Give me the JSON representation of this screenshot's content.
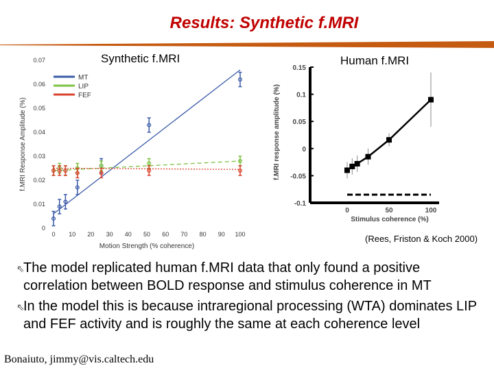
{
  "slide": {
    "title": "Results: Synthetic f.MRI",
    "citation": "(Rees, Friston & Koch 2000)",
    "footer": "Bonaiuto, jimmy@vis.caltech.edu",
    "bullets": [
      "The model replicated human f.MRI data that only found a positive correlation between BOLD response and stimulus coherence in MT",
      " In the model this is because intraregional processing (WTA) dominates LIP and FEF activity and is roughly the same at each coherence level"
    ],
    "bullet_icon": "arrow-bullet-icon",
    "colors": {
      "title": "#c00000",
      "rule": "#c55a11",
      "mt": "#3a5aa8",
      "lip": "#7cc143",
      "fef": "#d9412b"
    }
  },
  "chart_data": [
    {
      "type": "line",
      "title": "Synthetic f.MRI",
      "xlabel": "Motion Strength (% coherence)",
      "ylabel": "f.MRI Response Amplitude (%)",
      "xlim": [
        0,
        100
      ],
      "ylim": [
        0,
        0.07
      ],
      "xticks": [
        "0",
        "10",
        "20",
        "30",
        "40",
        "50",
        "60",
        "70",
        "80",
        "90",
        "100"
      ],
      "yticks": [
        "0",
        "0.01",
        "0.02",
        "0.03",
        "0.04",
        "0.05",
        "0.06",
        "0.07"
      ],
      "legend": [
        "MT",
        "LIP",
        "FEF"
      ],
      "series": [
        {
          "name": "MT",
          "x": [
            0,
            3.2,
            6.4,
            12.8,
            25.6,
            51.2,
            100
          ],
          "y": [
            0.004,
            0.009,
            0.011,
            0.017,
            0.026,
            0.043,
            0.062
          ],
          "err": 0.003,
          "fit": [
            [
              0,
              0.006
            ],
            [
              100,
              0.066
            ]
          ]
        },
        {
          "name": "LIP",
          "x": [
            0,
            3.2,
            6.4,
            12.8,
            25.6,
            51.2,
            100
          ],
          "y": [
            0.024,
            0.025,
            0.024,
            0.025,
            0.026,
            0.027,
            0.028
          ],
          "err": 0.002,
          "fit": [
            [
              0,
              0.024
            ],
            [
              100,
              0.028
            ]
          ]
        },
        {
          "name": "FEF",
          "x": [
            0,
            3.2,
            6.4,
            12.8,
            25.6,
            51.2,
            100
          ],
          "y": [
            0.024,
            0.024,
            0.024,
            0.023,
            0.023,
            0.024,
            0.024
          ],
          "err": 0.002,
          "fit": [
            [
              0,
              0.025
            ],
            [
              100,
              0.0245
            ]
          ]
        }
      ]
    },
    {
      "type": "line",
      "title": "Human f.MRI",
      "xlabel": "Stimulus coherence (%)",
      "ylabel": "f.MRI response amplitude (%)",
      "xlim": [
        0,
        100
      ],
      "ylim": [
        -0.1,
        0.15
      ],
      "xticks": [
        "0",
        "50",
        "100"
      ],
      "yticks": [
        "-0.1",
        "-0.05",
        "0",
        "0.05",
        "0.1",
        "0.15"
      ],
      "series": [
        {
          "x": [
            0,
            6,
            12,
            25,
            50,
            100
          ],
          "y": [
            -0.04,
            -0.033,
            -0.028,
            -0.015,
            0.016,
            0.09
          ],
          "err": [
            0.015,
            0.015,
            0.015,
            0.015,
            0.012,
            0.05
          ]
        }
      ],
      "baseline_y": -0.085
    }
  ]
}
